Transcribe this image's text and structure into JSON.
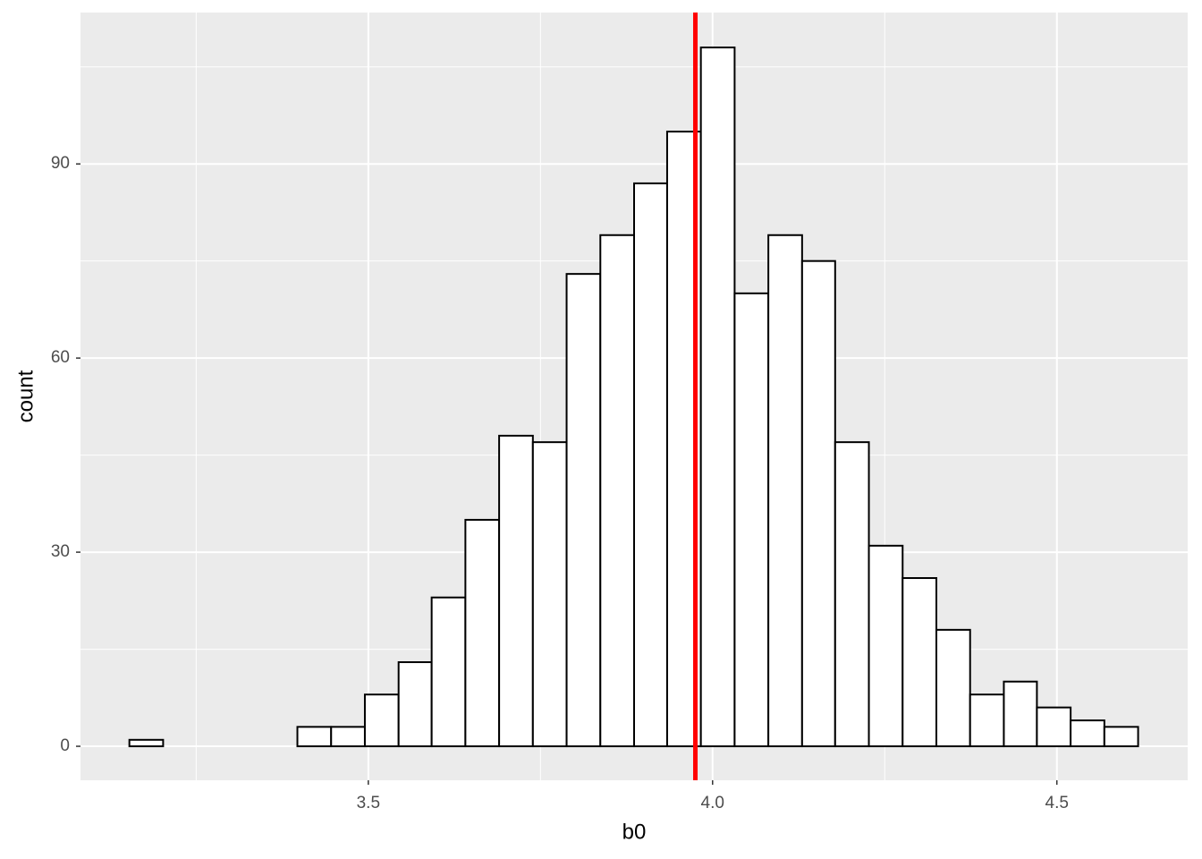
{
  "chart_data": {
    "type": "histogram",
    "x_label": "b0",
    "y_label": "count",
    "bins": [
      3.153,
      3.202,
      3.251,
      3.3,
      3.348,
      3.397,
      3.446,
      3.495,
      3.544,
      3.592,
      3.641,
      3.69,
      3.739,
      3.788,
      3.837,
      3.886,
      3.934,
      3.983,
      4.032,
      4.081,
      4.13,
      4.178,
      4.227,
      4.276,
      4.325,
      4.374,
      4.423,
      4.471,
      4.52,
      4.569,
      4.618
    ],
    "values": [
      1,
      0,
      0,
      0,
      0,
      3,
      3,
      8,
      13,
      23,
      35,
      48,
      47,
      73,
      79,
      87,
      95,
      108,
      70,
      79,
      75,
      47,
      31,
      26,
      18,
      8,
      10,
      6,
      4,
      3
    ],
    "color": "#ffffff",
    "edge_color": "#000000",
    "vline": 3.975,
    "vline_color": "#ff0000",
    "xlim": [
      3.082,
      4.69
    ],
    "ylim": [
      -5.25,
      113.4
    ],
    "xticks": [
      3.5,
      {
        "value": 4.0,
        "label": "4.0"
      },
      4.5
    ],
    "yticks": [
      0,
      30,
      60,
      90
    ],
    "xminor": [
      3.25,
      3.75,
      4.25
    ],
    "yminor": [
      15,
      45,
      75,
      105
    ],
    "grid": true
  }
}
